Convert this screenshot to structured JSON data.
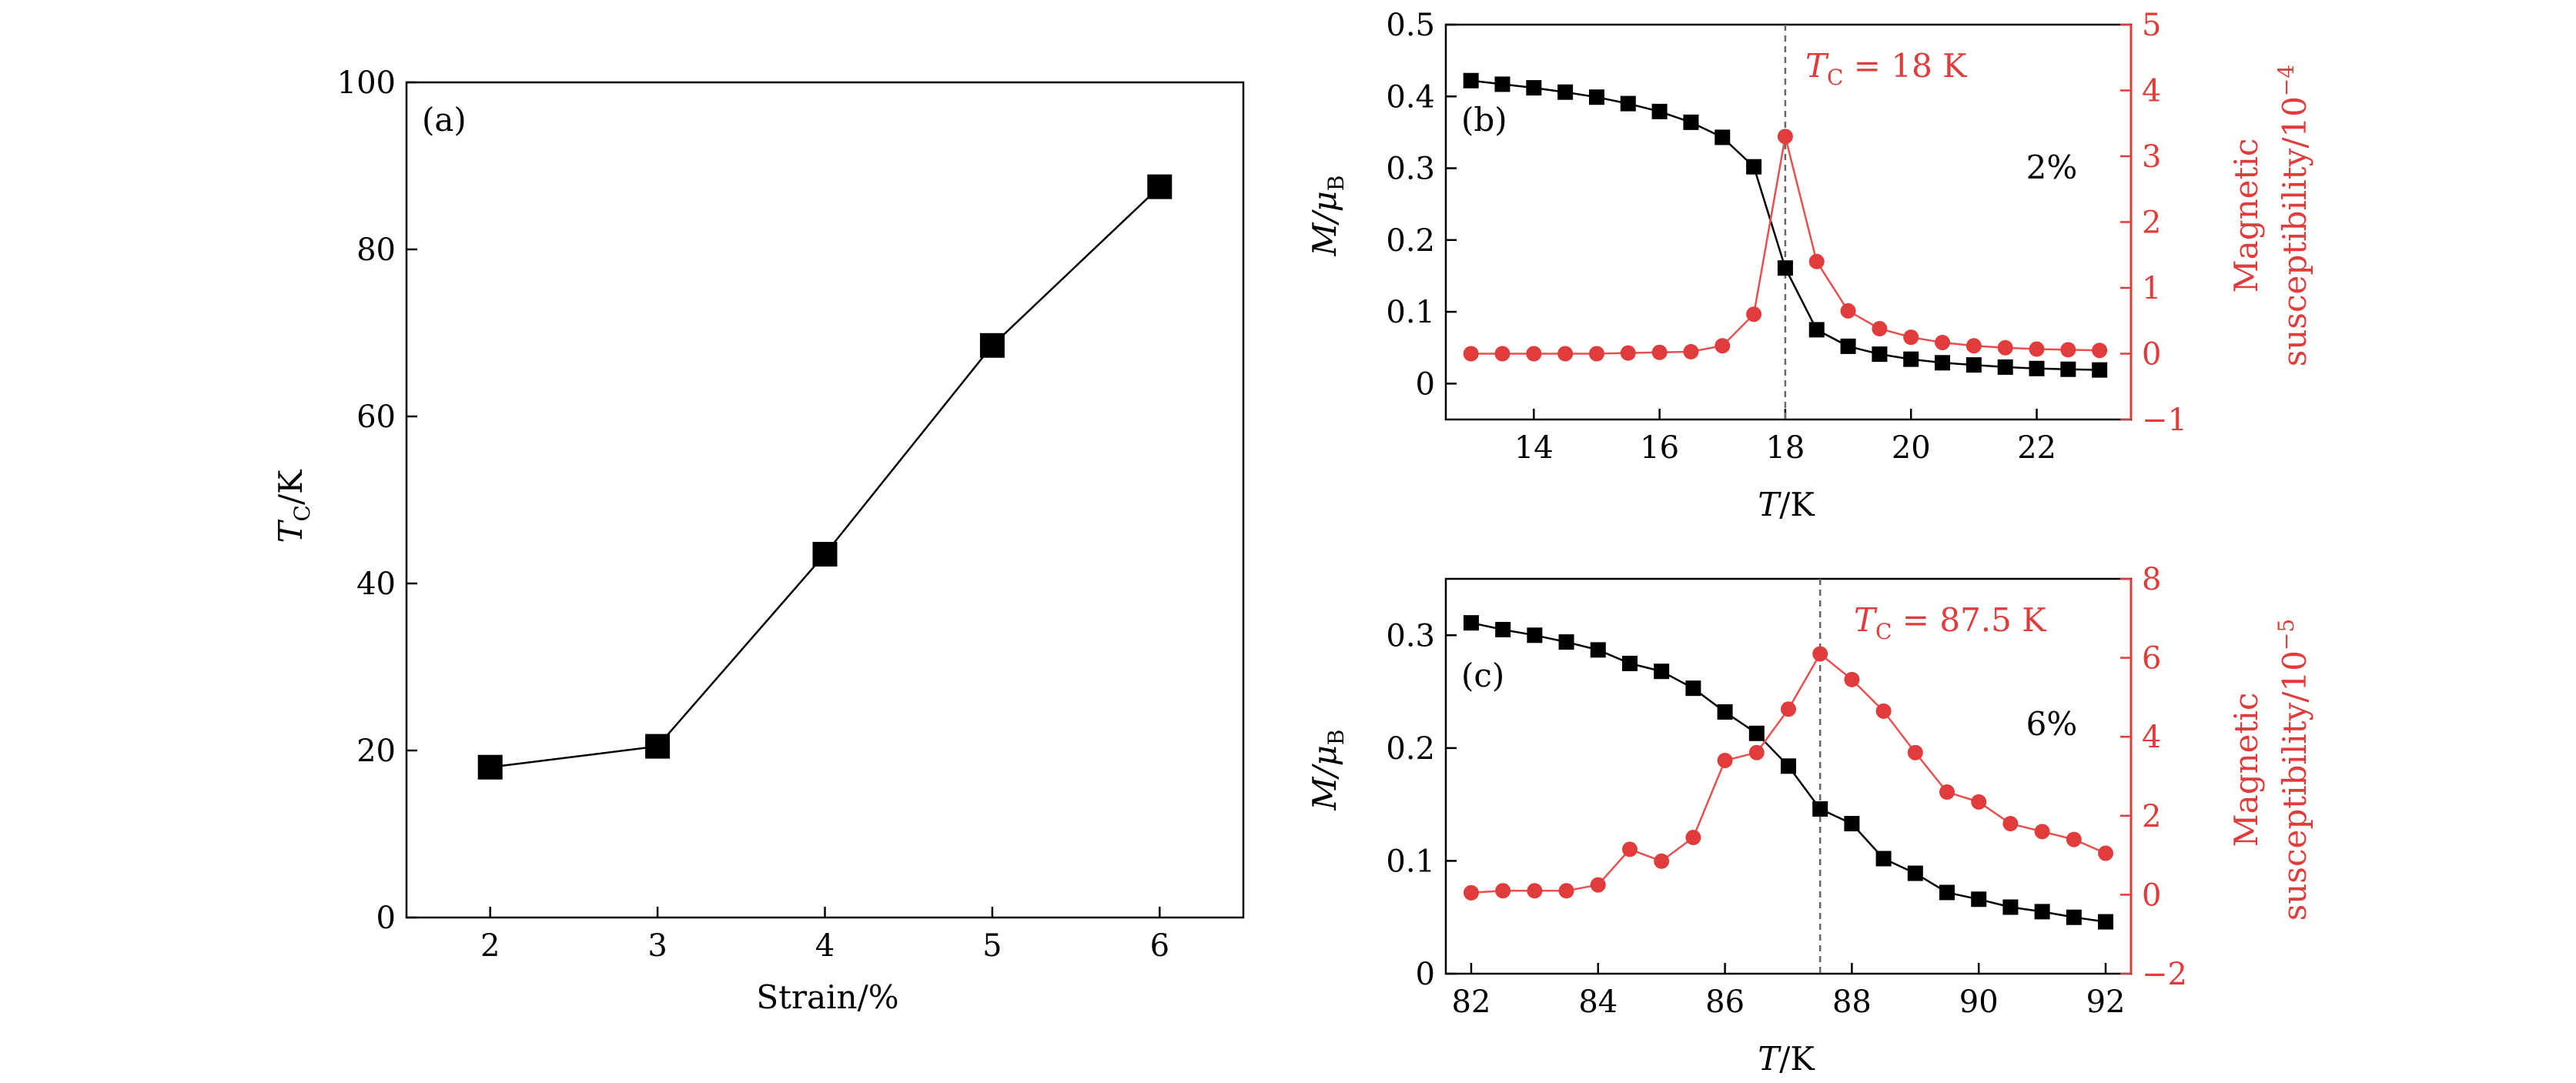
{
  "colors": {
    "black": "#000000",
    "red": "#e03c3c",
    "red_line": "#e85050",
    "dash": "#666666"
  },
  "chart_data": [
    {
      "id": "a",
      "type": "line",
      "panel_label": "(a)",
      "xlabel": "Strain/%",
      "ylabel_main": "T",
      "ylabel_sub": "C",
      "ylabel_unit": "/K",
      "xlim": [
        1.5,
        6.5
      ],
      "ylim": [
        0,
        100
      ],
      "xticks": [
        2,
        3,
        4,
        5,
        6
      ],
      "yticks": [
        0,
        20,
        40,
        60,
        80,
        100
      ],
      "grid": false,
      "series": [
        {
          "x": [
            2,
            3,
            4,
            5,
            6
          ],
          "y": [
            18,
            20.5,
            43.5,
            68.5,
            87.5
          ]
        }
      ]
    },
    {
      "id": "b",
      "type": "line",
      "panel_label": "(b)",
      "strain_label": "2%",
      "tc_label_prefix": "T",
      "tc_label_sub": "C",
      "tc_label_value": " = 18 K",
      "tc": 18,
      "xlabel_main": "T",
      "xlabel_unit": "/K",
      "ylabel": "M/μ",
      "ylabel_sub": "B",
      "y2label_line1": "Magnetic",
      "y2label_line2": "susceptibility/10",
      "y2label_exp": "−4",
      "xlim": [
        12.6,
        23.5
      ],
      "ylim": [
        -0.05,
        0.5
      ],
      "y2lim": [
        -1,
        5
      ],
      "xticks": [
        14,
        16,
        18,
        20,
        22
      ],
      "yticks": [
        "0",
        "0.1",
        "0.2",
        "0.3",
        "0.4",
        "0.5"
      ],
      "y2ticks": [
        "−1",
        "0",
        "1",
        "2",
        "3",
        "4",
        "5"
      ],
      "grid": false,
      "series": [
        {
          "axis": "left",
          "marker": "square",
          "x": [
            13,
            13.5,
            14,
            14.5,
            15,
            15.5,
            16,
            16.5,
            17,
            17.5,
            18,
            18.5,
            19,
            19.5,
            20,
            20.5,
            21,
            21.5,
            22,
            22.5,
            23
          ],
          "y": [
            0.422,
            0.417,
            0.412,
            0.406,
            0.399,
            0.39,
            0.379,
            0.364,
            0.343,
            0.302,
            0.161,
            0.075,
            0.052,
            0.041,
            0.034,
            0.029,
            0.026,
            0.023,
            0.021,
            0.02,
            0.019
          ]
        },
        {
          "axis": "right",
          "marker": "circle",
          "x": [
            13,
            13.5,
            14,
            14.5,
            15,
            15.5,
            16,
            16.5,
            17,
            17.5,
            18,
            18.5,
            19,
            19.5,
            20,
            20.5,
            21,
            21.5,
            22,
            22.5,
            23
          ],
          "y": [
            0,
            0,
            0,
            0,
            0,
            0.01,
            0.02,
            0.03,
            0.12,
            0.6,
            3.3,
            1.4,
            0.65,
            0.38,
            0.25,
            0.17,
            0.12,
            0.09,
            0.07,
            0.06,
            0.05
          ]
        }
      ]
    },
    {
      "id": "c",
      "type": "line",
      "panel_label": "(c)",
      "strain_label": "6%",
      "tc_label_prefix": "T",
      "tc_label_sub": "C",
      "tc_label_value": " = 87.5 K",
      "tc": 87.5,
      "xlabel_main": "T",
      "xlabel_unit": "/K",
      "ylabel": "M/μ",
      "ylabel_sub": "B",
      "y2label_line1": "Magnetic",
      "y2label_line2": "susceptibility/10",
      "y2label_exp": "−5",
      "xlim": [
        81.6,
        92.4
      ],
      "ylim": [
        0,
        0.35
      ],
      "y2lim": [
        -2,
        8
      ],
      "xticks": [
        82,
        84,
        86,
        88,
        90,
        92
      ],
      "yticks": [
        "0",
        "0.1",
        "0.2",
        "0.3"
      ],
      "y2ticks": [
        "−2",
        "0",
        "2",
        "4",
        "6",
        "8"
      ],
      "grid": false,
      "series": [
        {
          "axis": "left",
          "marker": "square",
          "x": [
            82,
            82.5,
            83,
            83.5,
            84,
            84.5,
            85,
            85.5,
            86,
            86.5,
            87,
            87.5,
            88,
            88.5,
            89,
            89.5,
            90,
            90.5,
            91,
            91.5,
            92
          ],
          "y": [
            0.311,
            0.305,
            0.3,
            0.294,
            0.287,
            0.275,
            0.268,
            0.253,
            0.232,
            0.213,
            0.184,
            0.146,
            0.133,
            0.102,
            0.089,
            0.072,
            0.066,
            0.059,
            0.055,
            0.05,
            0.046
          ]
        },
        {
          "axis": "right",
          "marker": "circle",
          "x": [
            82,
            82.5,
            83,
            83.5,
            84,
            84.5,
            85,
            85.5,
            86,
            86.5,
            87,
            87.5,
            88,
            88.5,
            89,
            89.5,
            90,
            90.5,
            91,
            91.5,
            92
          ],
          "y": [
            0.05,
            0.1,
            0.1,
            0.1,
            0.25,
            1.15,
            0.85,
            1.45,
            3.4,
            3.6,
            4.7,
            6.1,
            5.45,
            4.65,
            3.6,
            2.6,
            2.35,
            1.8,
            1.6,
            1.4,
            1.05
          ]
        }
      ]
    }
  ]
}
